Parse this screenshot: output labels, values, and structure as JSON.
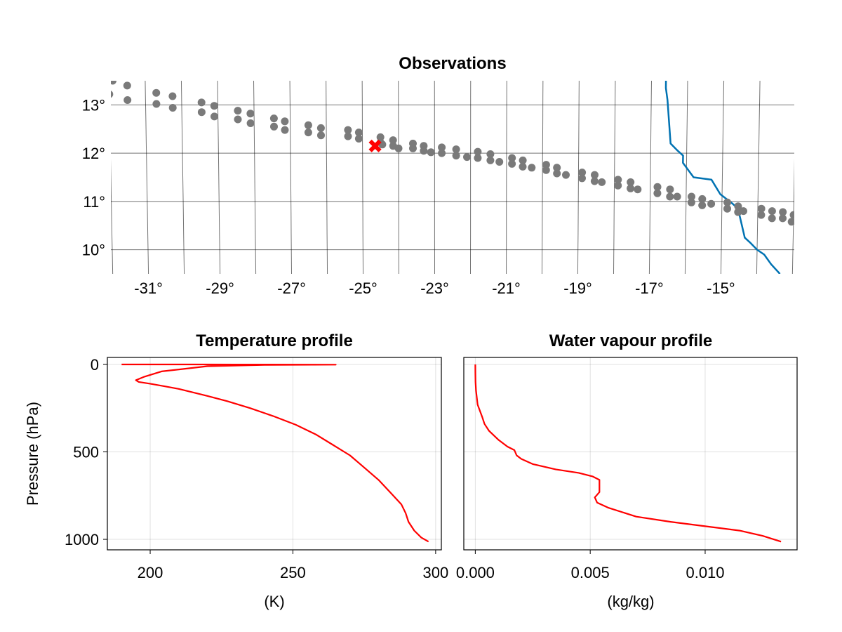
{
  "chart_data": [
    {
      "type": "scatter",
      "title": "Observations",
      "xlabel": "",
      "ylabel": "",
      "xlim": [
        -32,
        -13
      ],
      "ylim": [
        9.5,
        13.5
      ],
      "x_ticks": [
        "-31°",
        "-29°",
        "-27°",
        "-25°",
        "-23°",
        "-21°",
        "-19°",
        "-17°",
        "-15°"
      ],
      "y_ticks": [
        "10°",
        "11°",
        "12°",
        "13°"
      ],
      "grid": true,
      "coastline": {
        "color": "#0072b2",
        "points": [
          [
            -16.6,
            13.95
          ],
          [
            -16.6,
            13.35
          ],
          [
            -16.55,
            13.1
          ],
          [
            -16.45,
            12.2
          ],
          [
            -16.25,
            12.05
          ],
          [
            -16.1,
            11.95
          ],
          [
            -16.1,
            11.8
          ],
          [
            -15.8,
            11.5
          ],
          [
            -15.3,
            11.45
          ],
          [
            -15.05,
            11.15
          ],
          [
            -14.7,
            10.95
          ],
          [
            -14.55,
            10.85
          ],
          [
            -14.45,
            10.55
          ],
          [
            -14.35,
            10.25
          ],
          [
            -14.2,
            10.15
          ],
          [
            -14.0,
            10.0
          ],
          [
            -13.8,
            9.9
          ],
          [
            -13.6,
            9.7
          ],
          [
            -13.35,
            9.5
          ]
        ]
      },
      "observations": {
        "color": "#7a7a7a",
        "points": [
          [
            -31.9,
            13.5
          ],
          [
            -31.5,
            13.4
          ],
          [
            -32.0,
            13.22
          ],
          [
            -31.5,
            13.1
          ],
          [
            -30.7,
            13.25
          ],
          [
            -30.25,
            13.18
          ],
          [
            -30.7,
            13.02
          ],
          [
            -30.25,
            12.94
          ],
          [
            -29.45,
            13.05
          ],
          [
            -29.1,
            12.98
          ],
          [
            -29.45,
            12.85
          ],
          [
            -29.1,
            12.76
          ],
          [
            -28.45,
            12.88
          ],
          [
            -28.1,
            12.82
          ],
          [
            -28.45,
            12.7
          ],
          [
            -28.1,
            12.62
          ],
          [
            -27.45,
            12.72
          ],
          [
            -27.15,
            12.66
          ],
          [
            -27.45,
            12.55
          ],
          [
            -27.15,
            12.48
          ],
          [
            -26.5,
            12.58
          ],
          [
            -26.15,
            12.52
          ],
          [
            -26.5,
            12.43
          ],
          [
            -26.15,
            12.37
          ],
          [
            -25.4,
            12.48
          ],
          [
            -25.1,
            12.43
          ],
          [
            -25.4,
            12.35
          ],
          [
            -25.1,
            12.3
          ],
          [
            -24.5,
            12.33
          ],
          [
            -24.15,
            12.27
          ],
          [
            -24.5,
            12.22
          ],
          [
            -24.15,
            12.15
          ],
          [
            -23.6,
            12.2
          ],
          [
            -23.3,
            12.15
          ],
          [
            -23.6,
            12.1
          ],
          [
            -23.3,
            12.05
          ],
          [
            -22.8,
            12.12
          ],
          [
            -22.4,
            12.08
          ],
          [
            -22.8,
            12.0
          ],
          [
            -22.4,
            11.95
          ],
          [
            -21.8,
            12.03
          ],
          [
            -21.45,
            11.98
          ],
          [
            -21.8,
            11.9
          ],
          [
            -21.45,
            11.85
          ],
          [
            -20.85,
            11.9
          ],
          [
            -20.55,
            11.85
          ],
          [
            -20.85,
            11.78
          ],
          [
            -20.55,
            11.72
          ],
          [
            -19.9,
            11.76
          ],
          [
            -19.6,
            11.7
          ],
          [
            -19.9,
            11.65
          ],
          [
            -19.6,
            11.58
          ],
          [
            -18.9,
            11.6
          ],
          [
            -18.55,
            11.55
          ],
          [
            -18.9,
            11.48
          ],
          [
            -18.55,
            11.42
          ],
          [
            -17.9,
            11.45
          ],
          [
            -17.55,
            11.4
          ],
          [
            -17.9,
            11.33
          ],
          [
            -17.55,
            11.27
          ],
          [
            -16.8,
            11.3
          ],
          [
            -16.45,
            11.25
          ],
          [
            -16.8,
            11.17
          ],
          [
            -16.45,
            11.1
          ],
          [
            -15.85,
            11.1
          ],
          [
            -15.55,
            11.05
          ],
          [
            -15.85,
            10.98
          ],
          [
            -15.55,
            10.92
          ],
          [
            -14.85,
            10.98
          ],
          [
            -14.55,
            10.9
          ],
          [
            -14.85,
            10.85
          ],
          [
            -14.55,
            10.78
          ],
          [
            -13.9,
            10.85
          ],
          [
            -13.6,
            10.8
          ],
          [
            -13.9,
            10.72
          ],
          [
            -13.6,
            10.65
          ],
          [
            -13.3,
            10.78
          ],
          [
            -13.0,
            10.72
          ],
          [
            -13.3,
            10.65
          ],
          [
            -13.05,
            10.58
          ],
          [
            -24.45,
            12.18
          ],
          [
            -24.0,
            12.1
          ],
          [
            -23.1,
            12.02
          ],
          [
            -22.1,
            11.92
          ],
          [
            -21.2,
            11.82
          ],
          [
            -20.3,
            11.7
          ],
          [
            -19.35,
            11.55
          ],
          [
            -18.35,
            11.4
          ],
          [
            -17.35,
            11.25
          ],
          [
            -16.25,
            11.1
          ],
          [
            -15.3,
            10.95
          ],
          [
            -14.4,
            10.8
          ]
        ]
      },
      "highlight": {
        "x": -24.65,
        "y": 12.15,
        "color": "#ff0000",
        "marker": "x"
      }
    },
    {
      "type": "line",
      "title": "Temperature profile",
      "xlabel": "(K)",
      "ylabel": "Pressure (hPa)",
      "xlim": [
        185,
        302
      ],
      "ylim": [
        1060,
        -40
      ],
      "x_ticks": [
        "200",
        "250",
        "300"
      ],
      "y_ticks": [
        "0",
        "500",
        "1000"
      ],
      "grid": true,
      "series": [
        {
          "color": "#ff0000",
          "x": [
            190,
            215,
            230,
            255,
            265,
            240,
            220,
            204,
            198,
            195,
            196,
            200,
            205,
            210,
            215,
            220,
            227,
            235,
            243,
            251,
            258,
            264,
            270,
            275,
            280,
            284,
            288,
            289.5,
            290.5,
            292.5,
            295,
            297.5
          ],
          "y": [
            0,
            0,
            0.5,
            1,
            1.5,
            3,
            10,
            40,
            70,
            90,
            100,
            110,
            125,
            140,
            160,
            180,
            210,
            250,
            295,
            345,
            400,
            460,
            520,
            590,
            660,
            730,
            800,
            850,
            900,
            950,
            990,
            1013
          ]
        }
      ]
    },
    {
      "type": "line",
      "title": "Water vapour  profile",
      "xlabel": "(kg/kg)",
      "ylabel": "",
      "xlim": [
        -0.0005,
        0.014
      ],
      "ylim": [
        1060,
        -40
      ],
      "x_ticks": [
        "0.000",
        "0.005",
        "0.010"
      ],
      "y_ticks": [],
      "grid": true,
      "series": [
        {
          "color": "#ff0000",
          "x": [
            2e-06,
            5e-06,
            1e-05,
            3e-05,
            0.0001,
            0.0003,
            0.0004,
            0.0006,
            0.001,
            0.0014,
            0.0017,
            0.0018,
            0.002,
            0.0025,
            0.0035,
            0.0045,
            0.0051,
            0.0054,
            0.0054,
            0.0052,
            0.0053,
            0.0058,
            0.007,
            0.0085,
            0.0103,
            0.0115,
            0.0125,
            0.0133
          ],
          "y": [
            0,
            50,
            100,
            150,
            230,
            300,
            340,
            380,
            430,
            470,
            490,
            520,
            540,
            570,
            600,
            620,
            640,
            660,
            730,
            760,
            790,
            820,
            870,
            900,
            930,
            950,
            980,
            1013
          ]
        }
      ]
    }
  ]
}
